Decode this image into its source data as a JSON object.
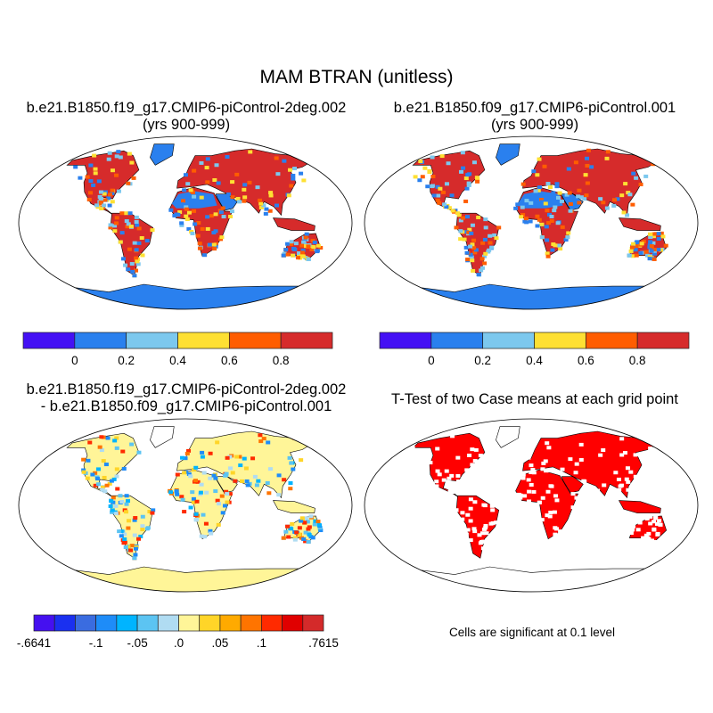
{
  "title": "MAM BTRAN (unitless)",
  "chart_data": [
    {
      "type": "heatmap",
      "map": true,
      "title_line1": "b.e21.B1850.f19_g17.CMIP6-piControl-2deg.002",
      "title_line2": "(yrs 900-999)",
      "colorbar": {
        "colors": [
          "#4410f4",
          "#2a80ee",
          "#7cc8ee",
          "#fee033",
          "#ff5d00",
          "#d62b2b"
        ],
        "tick_labels": [
          "0",
          "0.2",
          "0.4",
          "0.6",
          "0.8"
        ]
      }
    },
    {
      "type": "heatmap",
      "map": true,
      "title_line1": "b.e21.B1850.f09_g17.CMIP6-piControl.001",
      "title_line2": "(yrs 900-999)",
      "colorbar": {
        "colors": [
          "#4410f4",
          "#2a80ee",
          "#7cc8ee",
          "#fee033",
          "#ff5d00",
          "#d62b2b"
        ],
        "tick_labels": [
          "0",
          "0.2",
          "0.4",
          "0.6",
          "0.8"
        ]
      }
    },
    {
      "type": "heatmap",
      "map": true,
      "title_line1": "b.e21.B1850.f19_g17.CMIP6-piControl-2deg.002",
      "title_line2": "- b.e21.B1850.f09_g17.CMIP6-piControl.001",
      "colorbar": {
        "colors": [
          "#4510f0",
          "#1a30f0",
          "#3a6ce0",
          "#1e8cf8",
          "#00b4ff",
          "#5cc4f2",
          "#b0dcf2",
          "#fff598",
          "#ffd528",
          "#ffaa00",
          "#ff7400",
          "#ff2a00",
          "#e00000",
          "#d42a2a"
        ],
        "tick_labels": [
          {
            "label": "-.6641",
            "boundary": 0
          },
          {
            "label": "-.1",
            "boundary": 3
          },
          {
            "label": "-.05",
            "boundary": 5
          },
          {
            "label": ".0",
            "boundary": 7
          },
          {
            "label": ".05",
            "boundary": 9
          },
          {
            "label": ".1",
            "boundary": 11
          },
          {
            "label": ".7615",
            "boundary": 14
          }
        ]
      }
    },
    {
      "type": "heatmap",
      "map": true,
      "title_line1": "T-Test of two Case means at each grid point",
      "note": "Cells are significant at 0.1 level",
      "significant_color": "#ff0000"
    }
  ]
}
